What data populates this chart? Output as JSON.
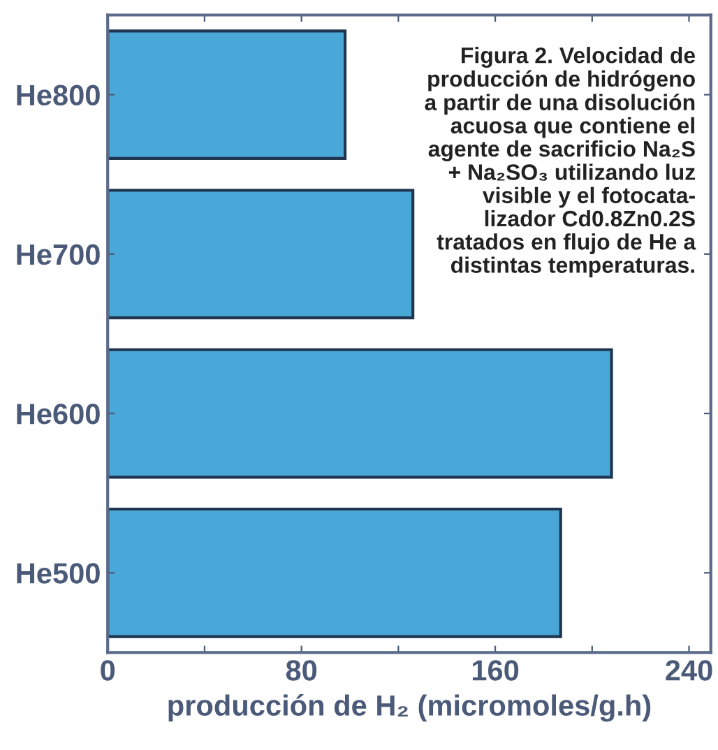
{
  "chart_data": {
    "type": "bar",
    "orientation": "horizontal",
    "categories": [
      "He800",
      "He700",
      "He600",
      "He500"
    ],
    "values": [
      98,
      126,
      208,
      187
    ],
    "color": "#4aa8d8",
    "xlim": [
      0,
      249
    ],
    "xticks": [
      0,
      {
        "value": 40,
        "label": null
      },
      80,
      {
        "value": 120,
        "label": null
      },
      160,
      {
        "value": 200,
        "label": null
      },
      240
    ],
    "xlabel": "producción de H₂ (micromoles/g.h)",
    "annotations": [
      "Figura 2. Velocidad de\nproducción de hidrógeno\na partir de una disolución\nacuosa que contiene el\nagente de sacrificio Na₂S\n+ Na₂SO₃ utilizando luz\nvisible y el fotocata-\nlizador Cd0.8Zn0.2S\ntratados en flujo de He a\ndistintas temperaturas."
    ],
    "grid": false,
    "legend": false
  }
}
